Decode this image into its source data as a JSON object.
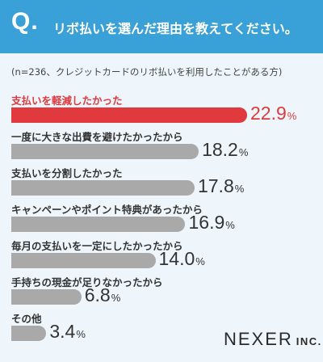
{
  "header": {
    "q_label": "Q.",
    "question": "リボ払いを選んだ理由を教えてください。"
  },
  "note": "(n=236、クレジットカードのリボ払いを利用したことがある方)",
  "logo": {
    "name": "NEXER",
    "suffix": "INC."
  },
  "colors": {
    "header": "#3aa0d8",
    "highlight": "#e0393e",
    "bar": "#a9a9a9",
    "background": "#eef6fb"
  },
  "chart_data": {
    "type": "bar",
    "orientation": "horizontal",
    "unit": "%",
    "categories": [
      "支払いを軽減したかった",
      "一度に大きな出費を避けたかったから",
      "支払いを分割したかった",
      "キャンペーンやポイント特典があったから",
      "毎月の支払いを一定にしたかったから",
      "手持ちの現金が足りなかったから",
      "その他"
    ],
    "values": [
      22.9,
      18.2,
      17.8,
      16.9,
      14.0,
      6.8,
      3.4
    ],
    "value_labels": [
      "22.9",
      "18.2",
      "17.8",
      "16.9",
      "14.0",
      "6.8",
      "3.4"
    ],
    "highlight_index": 0,
    "xlim": [
      0,
      22.9
    ]
  }
}
